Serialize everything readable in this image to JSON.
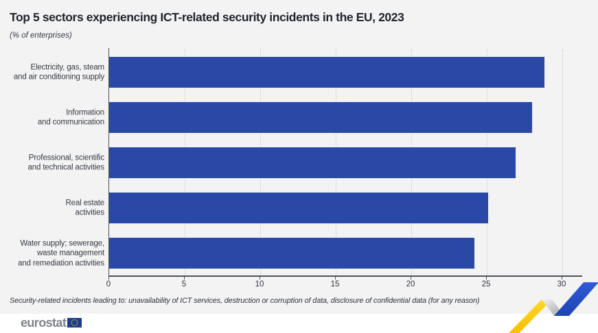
{
  "header": {
    "title": "Top 5 sectors experiencing ICT-related security incidents in the EU, 2023",
    "subtitle": "(% of enterprises)"
  },
  "footnote": "Security-related incidents leading to: unavailability of ICT services, destruction or corruption of data, disclosure of confidential data (for any reason)",
  "footer": {
    "logo_text": "eurostat"
  },
  "icons": {
    "eu_flag": "blue rectangle with circle of 12 yellow stars",
    "brand_zigzag": "yellow-grey-blue zigzag ribbon"
  },
  "colors": {
    "background": "#f3f3f4",
    "bar": "#2a48a6",
    "title_text": "#20252d",
    "label_text": "#363b43",
    "axis": "#4d525a",
    "gridline": "#c7c9cc",
    "footer_background": "#ffffff",
    "logo_gray": "#7f8389",
    "flag_blue": "#1b3d91",
    "flag_stars": "#ffcc00",
    "zigzag_yellow": "#fdc900",
    "zigzag_blue": "#2452cd"
  },
  "chart_data": {
    "type": "bar",
    "orientation": "horizontal",
    "title": "Top 5 sectors experiencing ICT-related security incidents in the EU, 2023",
    "unit": "% of enterprises",
    "categories": [
      [
        "Electricity, gas, steam",
        "and air conditioning supply"
      ],
      [
        "Information",
        "and communication"
      ],
      [
        "Professional, scientific",
        "and technical activities"
      ],
      [
        "Real estate",
        "activities"
      ],
      [
        "Water supply; sewerage,",
        "waste management",
        "and remediation activities"
      ]
    ],
    "values": [
      28.8,
      28.0,
      26.9,
      25.1,
      24.2
    ],
    "xlim": [
      0,
      30
    ],
    "xticks": [
      0,
      5,
      10,
      15,
      20,
      25,
      30
    ],
    "grid": "vertical dotted gridlines",
    "legend": "none",
    "bar_color": "#2a48a6"
  }
}
